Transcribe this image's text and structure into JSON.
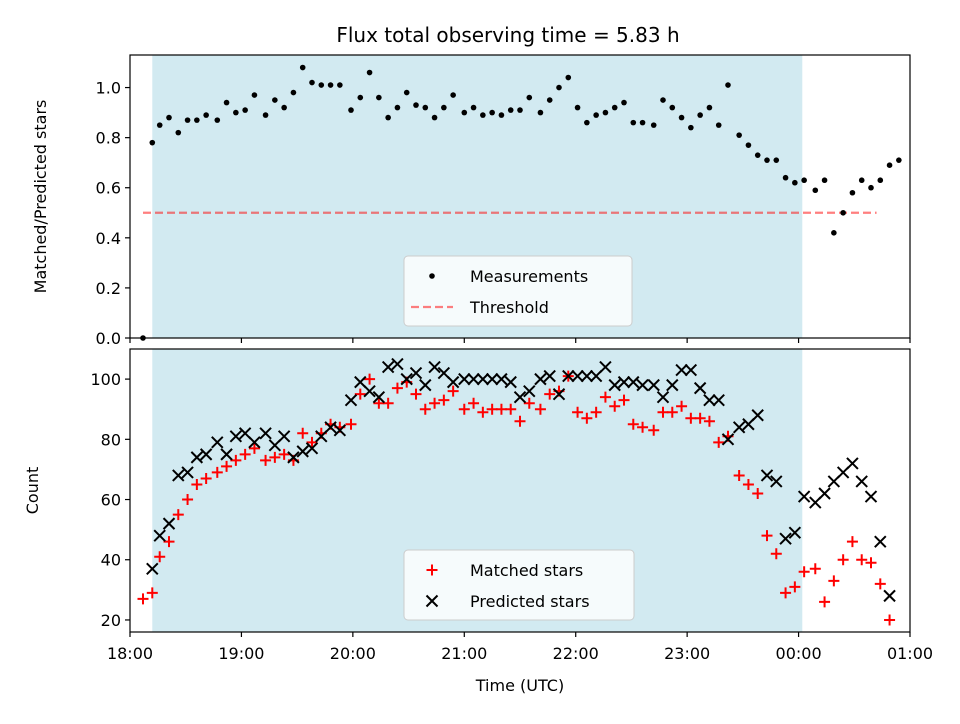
{
  "title": "Flux total observing time = 5.83 h",
  "colors": {
    "span": "#add8e6",
    "measurements": "#000000",
    "threshold": "#ff0000",
    "matched": "#ff0000",
    "predicted": "#000000"
  },
  "chart_data": [
    {
      "type": "scatter",
      "title": "Flux total observing time = 5.83 h",
      "xlabel": "",
      "ylabel": "Matched/Predicted stars",
      "xlim": [
        "18:00",
        "01:00"
      ],
      "ylim": [
        0,
        1.13
      ],
      "xticks": [],
      "yticks": [
        "0.0",
        "0.2",
        "0.4",
        "0.6",
        "0.8",
        "1.0"
      ],
      "ytick_values": [
        0,
        0.2,
        0.4,
        0.6,
        0.8,
        1.0
      ],
      "observing_span": [
        "18:12",
        "00:02"
      ],
      "legend": {
        "placement": "lower center",
        "entries": [
          "Measurements",
          "Threshold"
        ]
      },
      "threshold": {
        "name": "Threshold",
        "y": 0.5,
        "x": [
          "18:07",
          "00:42"
        ]
      },
      "series": [
        {
          "name": "Measurements",
          "marker": "dot",
          "points": [
            [
              "18:07",
              0.0
            ],
            [
              "18:12",
              0.78
            ],
            [
              "18:16",
              0.85
            ],
            [
              "18:21",
              0.88
            ],
            [
              "18:26",
              0.82
            ],
            [
              "18:31",
              0.87
            ],
            [
              "18:36",
              0.87
            ],
            [
              "18:41",
              0.89
            ],
            [
              "18:47",
              0.87
            ],
            [
              "18:52",
              0.94
            ],
            [
              "18:57",
              0.9
            ],
            [
              "19:02",
              0.91
            ],
            [
              "19:07",
              0.97
            ],
            [
              "19:13",
              0.89
            ],
            [
              "19:18",
              0.95
            ],
            [
              "19:23",
              0.92
            ],
            [
              "19:28",
              0.98
            ],
            [
              "19:33",
              1.08
            ],
            [
              "19:38",
              1.02
            ],
            [
              "19:43",
              1.01
            ],
            [
              "19:48",
              1.01
            ],
            [
              "19:53",
              1.01
            ],
            [
              "19:59",
              0.91
            ],
            [
              "20:04",
              0.96
            ],
            [
              "20:09",
              1.06
            ],
            [
              "20:14",
              0.96
            ],
            [
              "20:19",
              0.88
            ],
            [
              "20:24",
              0.92
            ],
            [
              "20:29",
              0.98
            ],
            [
              "20:34",
              0.93
            ],
            [
              "20:39",
              0.92
            ],
            [
              "20:44",
              0.88
            ],
            [
              "20:49",
              0.92
            ],
            [
              "20:54",
              0.97
            ],
            [
              "21:00",
              0.9
            ],
            [
              "21:05",
              0.92
            ],
            [
              "21:10",
              0.89
            ],
            [
              "21:15",
              0.9
            ],
            [
              "21:20",
              0.89
            ],
            [
              "21:25",
              0.91
            ],
            [
              "21:30",
              0.91
            ],
            [
              "21:35",
              0.96
            ],
            [
              "21:41",
              0.9
            ],
            [
              "21:46",
              0.95
            ],
            [
              "21:51",
              1.0
            ],
            [
              "21:56",
              1.04
            ],
            [
              "22:01",
              0.92
            ],
            [
              "22:06",
              0.86
            ],
            [
              "22:11",
              0.89
            ],
            [
              "22:16",
              0.9
            ],
            [
              "22:21",
              0.92
            ],
            [
              "22:26",
              0.94
            ],
            [
              "22:31",
              0.86
            ],
            [
              "22:36",
              0.86
            ],
            [
              "22:42",
              0.85
            ],
            [
              "22:47",
              0.95
            ],
            [
              "22:52",
              0.92
            ],
            [
              "22:57",
              0.88
            ],
            [
              "23:02",
              0.84
            ],
            [
              "23:07",
              0.89
            ],
            [
              "23:12",
              0.92
            ],
            [
              "23:17",
              0.85
            ],
            [
              "23:22",
              1.01
            ],
            [
              "23:28",
              0.81
            ],
            [
              "23:33",
              0.77
            ],
            [
              "23:38",
              0.73
            ],
            [
              "23:43",
              0.71
            ],
            [
              "23:48",
              0.71
            ],
            [
              "23:53",
              0.64
            ],
            [
              "23:58",
              0.62
            ],
            [
              "00:03",
              0.63
            ],
            [
              "00:09",
              0.59
            ],
            [
              "00:14",
              0.63
            ],
            [
              "00:19",
              0.42
            ],
            [
              "00:24",
              0.5
            ],
            [
              "00:29",
              0.58
            ],
            [
              "00:34",
              0.63
            ],
            [
              "00:39",
              0.6
            ],
            [
              "00:44",
              0.63
            ],
            [
              "00:49",
              0.69
            ],
            [
              "00:54",
              0.71
            ]
          ]
        }
      ]
    },
    {
      "type": "scatter",
      "xlabel": "Time (UTC)",
      "ylabel": "Count",
      "xlim": [
        "18:00",
        "01:00"
      ],
      "ylim": [
        16,
        110
      ],
      "xticks": [
        "18:00",
        "19:00",
        "20:00",
        "21:00",
        "22:00",
        "23:00",
        "00:00",
        "01:00"
      ],
      "yticks": [
        "20",
        "40",
        "60",
        "80",
        "100"
      ],
      "ytick_values": [
        20,
        40,
        60,
        80,
        100
      ],
      "observing_span": [
        "18:12",
        "00:02"
      ],
      "legend": {
        "placement": "lower center",
        "entries": [
          "Matched stars",
          "Predicted stars"
        ]
      },
      "series": [
        {
          "name": "Matched stars",
          "marker": "plus",
          "points": [
            [
              "18:07",
              27
            ],
            [
              "18:12",
              29
            ],
            [
              "18:16",
              41
            ],
            [
              "18:21",
              46
            ],
            [
              "18:26",
              55
            ],
            [
              "18:31",
              60
            ],
            [
              "18:36",
              65
            ],
            [
              "18:41",
              67
            ],
            [
              "18:47",
              69
            ],
            [
              "18:52",
              71
            ],
            [
              "18:57",
              73
            ],
            [
              "19:02",
              75
            ],
            [
              "19:07",
              77
            ],
            [
              "19:13",
              73
            ],
            [
              "19:18",
              74
            ],
            [
              "19:23",
              75
            ],
            [
              "19:28",
              73
            ],
            [
              "19:33",
              82
            ],
            [
              "19:38",
              79
            ],
            [
              "19:43",
              82
            ],
            [
              "19:48",
              85
            ],
            [
              "19:53",
              84
            ],
            [
              "19:59",
              85
            ],
            [
              "20:04",
              95
            ],
            [
              "20:09",
              100
            ],
            [
              "20:14",
              92
            ],
            [
              "20:19",
              92
            ],
            [
              "20:24",
              97
            ],
            [
              "20:29",
              99
            ],
            [
              "20:34",
              95
            ],
            [
              "20:39",
              90
            ],
            [
              "20:44",
              92
            ],
            [
              "20:49",
              93
            ],
            [
              "20:54",
              96
            ],
            [
              "21:00",
              90
            ],
            [
              "21:05",
              92
            ],
            [
              "21:10",
              89
            ],
            [
              "21:15",
              90
            ],
            [
              "21:20",
              90
            ],
            [
              "21:25",
              90
            ],
            [
              "21:30",
              86
            ],
            [
              "21:35",
              92
            ],
            [
              "21:41",
              90
            ],
            [
              "21:46",
              95
            ],
            [
              "21:51",
              96
            ],
            [
              "21:56",
              101
            ],
            [
              "22:01",
              89
            ],
            [
              "22:06",
              87
            ],
            [
              "22:11",
              89
            ],
            [
              "22:16",
              94
            ],
            [
              "22:21",
              91
            ],
            [
              "22:26",
              93
            ],
            [
              "22:31",
              85
            ],
            [
              "22:36",
              84
            ],
            [
              "22:42",
              83
            ],
            [
              "22:47",
              89
            ],
            [
              "22:52",
              89
            ],
            [
              "22:57",
              91
            ],
            [
              "23:02",
              87
            ],
            [
              "23:07",
              87
            ],
            [
              "23:12",
              86
            ],
            [
              "23:17",
              79
            ],
            [
              "23:22",
              81
            ],
            [
              "23:28",
              68
            ],
            [
              "23:33",
              65
            ],
            [
              "23:38",
              62
            ],
            [
              "23:43",
              48
            ],
            [
              "23:48",
              42
            ],
            [
              "23:53",
              29
            ],
            [
              "23:58",
              31
            ],
            [
              "00:03",
              36
            ],
            [
              "00:09",
              37
            ],
            [
              "00:14",
              26
            ],
            [
              "00:19",
              33
            ],
            [
              "00:24",
              40
            ],
            [
              "00:29",
              46
            ],
            [
              "00:34",
              40
            ],
            [
              "00:39",
              39
            ],
            [
              "00:44",
              32
            ],
            [
              "00:49",
              20
            ]
          ]
        },
        {
          "name": "Predicted stars",
          "marker": "x",
          "points": [
            [
              "18:12",
              37
            ],
            [
              "18:16",
              48
            ],
            [
              "18:21",
              52
            ],
            [
              "18:26",
              68
            ],
            [
              "18:31",
              69
            ],
            [
              "18:36",
              74
            ],
            [
              "18:41",
              75
            ],
            [
              "18:47",
              79
            ],
            [
              "18:52",
              75
            ],
            [
              "18:57",
              81
            ],
            [
              "19:02",
              82
            ],
            [
              "19:07",
              79
            ],
            [
              "19:13",
              82
            ],
            [
              "19:18",
              78
            ],
            [
              "19:23",
              81
            ],
            [
              "19:28",
              74
            ],
            [
              "19:33",
              76
            ],
            [
              "19:38",
              77
            ],
            [
              "19:43",
              81
            ],
            [
              "19:48",
              84
            ],
            [
              "19:53",
              83
            ],
            [
              "19:59",
              93
            ],
            [
              "20:04",
              99
            ],
            [
              "20:09",
              96
            ],
            [
              "20:14",
              94
            ],
            [
              "20:19",
              104
            ],
            [
              "20:24",
              105
            ],
            [
              "20:29",
              100
            ],
            [
              "20:34",
              102
            ],
            [
              "20:39",
              98
            ],
            [
              "20:44",
              104
            ],
            [
              "20:49",
              102
            ],
            [
              "20:54",
              99
            ],
            [
              "21:00",
              100
            ],
            [
              "21:05",
              100
            ],
            [
              "21:10",
              100
            ],
            [
              "21:15",
              100
            ],
            [
              "21:20",
              100
            ],
            [
              "21:25",
              99
            ],
            [
              "21:30",
              94
            ],
            [
              "21:35",
              96
            ],
            [
              "21:41",
              100
            ],
            [
              "21:46",
              101
            ],
            [
              "21:51",
              95
            ],
            [
              "21:56",
              101
            ],
            [
              "22:01",
              101
            ],
            [
              "22:06",
              101
            ],
            [
              "22:11",
              101
            ],
            [
              "22:16",
              104
            ],
            [
              "22:21",
              98
            ],
            [
              "22:26",
              99
            ],
            [
              "22:31",
              99
            ],
            [
              "22:36",
              98
            ],
            [
              "22:42",
              98
            ],
            [
              "22:47",
              94
            ],
            [
              "22:52",
              98
            ],
            [
              "22:57",
              103
            ],
            [
              "23:02",
              103
            ],
            [
              "23:07",
              97
            ],
            [
              "23:12",
              93
            ],
            [
              "23:17",
              93
            ],
            [
              "23:22",
              80
            ],
            [
              "23:28",
              84
            ],
            [
              "23:33",
              85
            ],
            [
              "23:38",
              88
            ],
            [
              "23:43",
              68
            ],
            [
              "23:48",
              66
            ],
            [
              "23:53",
              47
            ],
            [
              "23:58",
              49
            ],
            [
              "00:03",
              61
            ],
            [
              "00:09",
              59
            ],
            [
              "00:14",
              62
            ],
            [
              "00:19",
              66
            ],
            [
              "00:24",
              69
            ],
            [
              "00:29",
              72
            ],
            [
              "00:34",
              66
            ],
            [
              "00:39",
              61
            ],
            [
              "00:44",
              46
            ],
            [
              "00:49",
              28
            ]
          ]
        }
      ]
    }
  ]
}
